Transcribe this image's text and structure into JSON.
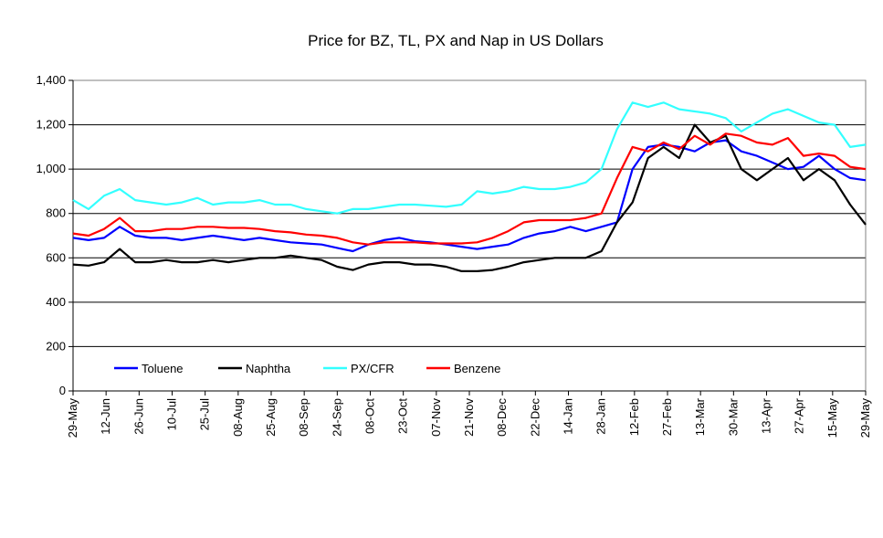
{
  "chart_data": {
    "type": "line",
    "title": "Price for BZ, TL, PX and Nap in US Dollars",
    "xlabel": "",
    "ylabel": "",
    "ylim": [
      0,
      1400
    ],
    "yticks": [
      0,
      200,
      400,
      600,
      800,
      1000,
      1200,
      1400
    ],
    "ytick_labels": [
      "0",
      "200",
      "400",
      "600",
      "800",
      "1,000",
      "1,200",
      "1,400"
    ],
    "x_range": [
      "29-May",
      "29-May"
    ],
    "x_tick_labels": [
      "29-May",
      "12-Jun",
      "26-Jun",
      "10-Jul",
      "25-Jul",
      "08-Aug",
      "25-Aug",
      "08-Sep",
      "24-Sep",
      "08-Oct",
      "23-Oct",
      "07-Nov",
      "21-Nov",
      "08-Dec",
      "22-Dec",
      "14-Jan",
      "28-Jan",
      "12-Feb",
      "27-Feb",
      "13-Mar",
      "30-Mar",
      "13-Apr",
      "27-Apr",
      "15-May",
      "29-May"
    ],
    "grid": true,
    "legend_position": "bottom-left-inside",
    "series": [
      {
        "name": "Toluene",
        "color": "#0000ff",
        "values": [
          690,
          680,
          690,
          740,
          700,
          690,
          690,
          680,
          690,
          700,
          690,
          680,
          690,
          680,
          670,
          665,
          660,
          645,
          630,
          660,
          680,
          690,
          675,
          670,
          660,
          650,
          640,
          650,
          660,
          690,
          710,
          720,
          740,
          720,
          740,
          760,
          1000,
          1100,
          1110,
          1100,
          1080,
          1120,
          1130,
          1080,
          1060,
          1030,
          1000,
          1010,
          1060,
          1000,
          960,
          950
        ]
      },
      {
        "name": "Naphtha",
        "color": "#000000",
        "values": [
          570,
          565,
          580,
          640,
          580,
          580,
          590,
          580,
          580,
          590,
          580,
          590,
          600,
          600,
          610,
          600,
          590,
          560,
          545,
          570,
          580,
          580,
          570,
          570,
          560,
          540,
          540,
          545,
          560,
          580,
          590,
          600,
          600,
          600,
          630,
          760,
          850,
          1050,
          1100,
          1050,
          1200,
          1120,
          1150,
          1000,
          950,
          1000,
          1050,
          950,
          1000,
          950,
          840,
          750
        ]
      },
      {
        "name": "PX/CFR",
        "color": "#33ffff",
        "values": [
          860,
          820,
          880,
          910,
          860,
          850,
          840,
          850,
          870,
          840,
          850,
          850,
          860,
          840,
          840,
          820,
          810,
          800,
          820,
          820,
          830,
          840,
          840,
          835,
          830,
          840,
          900,
          890,
          900,
          920,
          910,
          910,
          920,
          940,
          1000,
          1180,
          1300,
          1280,
          1300,
          1270,
          1260,
          1250,
          1230,
          1170,
          1210,
          1250,
          1270,
          1240,
          1210,
          1200,
          1100,
          1110
        ]
      },
      {
        "name": "Benzene",
        "color": "#ff0000",
        "values": [
          710,
          700,
          730,
          780,
          720,
          720,
          730,
          730,
          740,
          740,
          735,
          735,
          730,
          720,
          715,
          705,
          700,
          690,
          670,
          660,
          670,
          670,
          670,
          665,
          665,
          665,
          670,
          690,
          720,
          760,
          770,
          770,
          770,
          780,
          800,
          960,
          1100,
          1080,
          1120,
          1090,
          1150,
          1110,
          1160,
          1150,
          1120,
          1110,
          1140,
          1060,
          1070,
          1060,
          1010,
          1000
        ]
      }
    ]
  }
}
